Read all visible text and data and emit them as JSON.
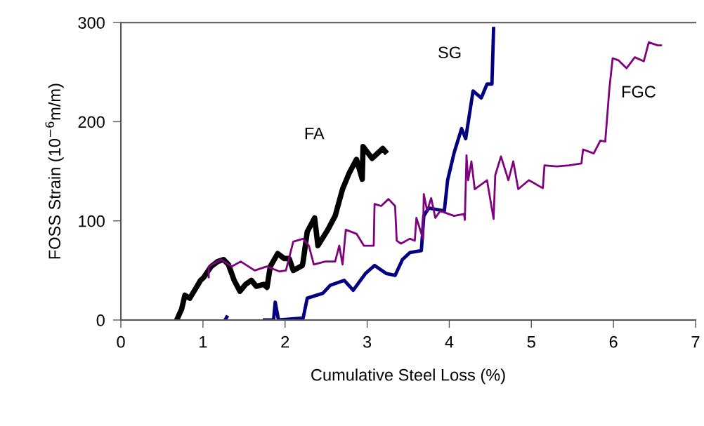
{
  "chart_data": {
    "type": "line",
    "xlabel": "Cumulative Steel Loss (%)",
    "ylabel": "FOSS Strain (10$^{−6}$m/m)",
    "xlim": [
      0,
      7
    ],
    "xticks": [
      0,
      1,
      2,
      3,
      4,
      5,
      6,
      7
    ],
    "ylim": [
      0,
      300
    ],
    "yticks": [
      0,
      100,
      200,
      300
    ],
    "grid": false,
    "legend": false,
    "marker": "none",
    "line_style": "solid",
    "series": [
      {
        "name": "FA",
        "color": "#000000",
        "x": [
          0.68,
          0.74,
          0.78,
          0.84,
          0.92,
          0.97,
          1.01,
          1.1,
          1.18,
          1.25,
          1.31,
          1.38,
          1.45,
          1.52,
          1.59,
          1.65,
          1.74,
          1.78,
          1.82,
          1.91,
          1.99,
          2.05,
          2.1,
          2.21,
          2.22,
          2.27,
          2.36,
          2.4,
          2.52,
          2.61,
          2.7,
          2.78,
          2.87,
          2.94,
          2.95,
          3.06,
          3.19,
          3.22
        ],
        "values": [
          0,
          11,
          25,
          22,
          33,
          40,
          43,
          54,
          59,
          61,
          56,
          40,
          29,
          36,
          40,
          34,
          36,
          33,
          54,
          67,
          62,
          62,
          50,
          55,
          59,
          89,
          103,
          75,
          91,
          105,
          132,
          148,
          162,
          142,
          175,
          163,
          173,
          170
        ]
      },
      {
        "name": "SG",
        "color": "#000080",
        "x": [
          1.27,
          1.29,
          1.3,
          1.75,
          1.86,
          1.88,
          1.92,
          2.22,
          2.27,
          2.46,
          2.55,
          2.72,
          2.83,
          2.98,
          3.09,
          3.23,
          3.34,
          3.43,
          3.52,
          3.66,
          3.69,
          3.75,
          3.94,
          3.98,
          4.06,
          4.15,
          4.2,
          4.29,
          4.39,
          4.46,
          4.52,
          4.54
        ],
        "values": [
          0,
          3,
          null,
          0,
          0,
          18,
          0,
          2,
          22,
          27,
          35,
          40,
          30,
          47,
          55,
          47,
          45,
          61,
          68,
          70,
          105,
          113,
          110,
          141,
          169,
          193,
          183,
          231,
          224,
          238,
          238,
          294
        ]
      },
      {
        "name": "FGC",
        "color": "#800080",
        "x": [
          1.07,
          1.07,
          1.22,
          1.35,
          1.46,
          1.63,
          1.78,
          1.93,
          2.01,
          2.1,
          2.22,
          2.29,
          2.35,
          2.49,
          2.61,
          2.66,
          2.7,
          2.74,
          2.87,
          2.96,
          3.08,
          3.09,
          3.17,
          3.26,
          3.34,
          3.36,
          3.41,
          3.52,
          3.58,
          3.6,
          3.68,
          3.69,
          3.73,
          3.78,
          3.83,
          3.89,
          4.06,
          4.18,
          4.19,
          4.21,
          4.23,
          4.27,
          4.31,
          4.46,
          4.54,
          4.56,
          4.63,
          4.72,
          4.78,
          4.84,
          4.97,
          5.14,
          5.16,
          5.31,
          5.46,
          5.61,
          5.63,
          5.76,
          5.84,
          5.9,
          5.95,
          5.99,
          6.06,
          6.16,
          6.26,
          6.37,
          6.43,
          6.54,
          6.58
        ],
        "values": [
          43,
          54,
          61,
          54,
          59,
          50,
          54,
          49,
          50,
          79,
          82,
          75,
          56,
          59,
          59,
          75,
          56,
          91,
          87,
          75,
          75,
          117,
          115,
          122,
          115,
          80,
          77,
          82,
          80,
          103,
          82,
          127,
          110,
          123,
          103,
          110,
          105,
          107,
          101,
          166,
          141,
          160,
          132,
          141,
          102,
          146,
          165,
          141,
          160,
          132,
          141,
          133,
          156,
          155,
          156,
          158,
          172,
          168,
          181,
          180,
          233,
          264,
          262,
          254,
          265,
          261,
          280,
          277,
          277
        ]
      }
    ]
  }
}
